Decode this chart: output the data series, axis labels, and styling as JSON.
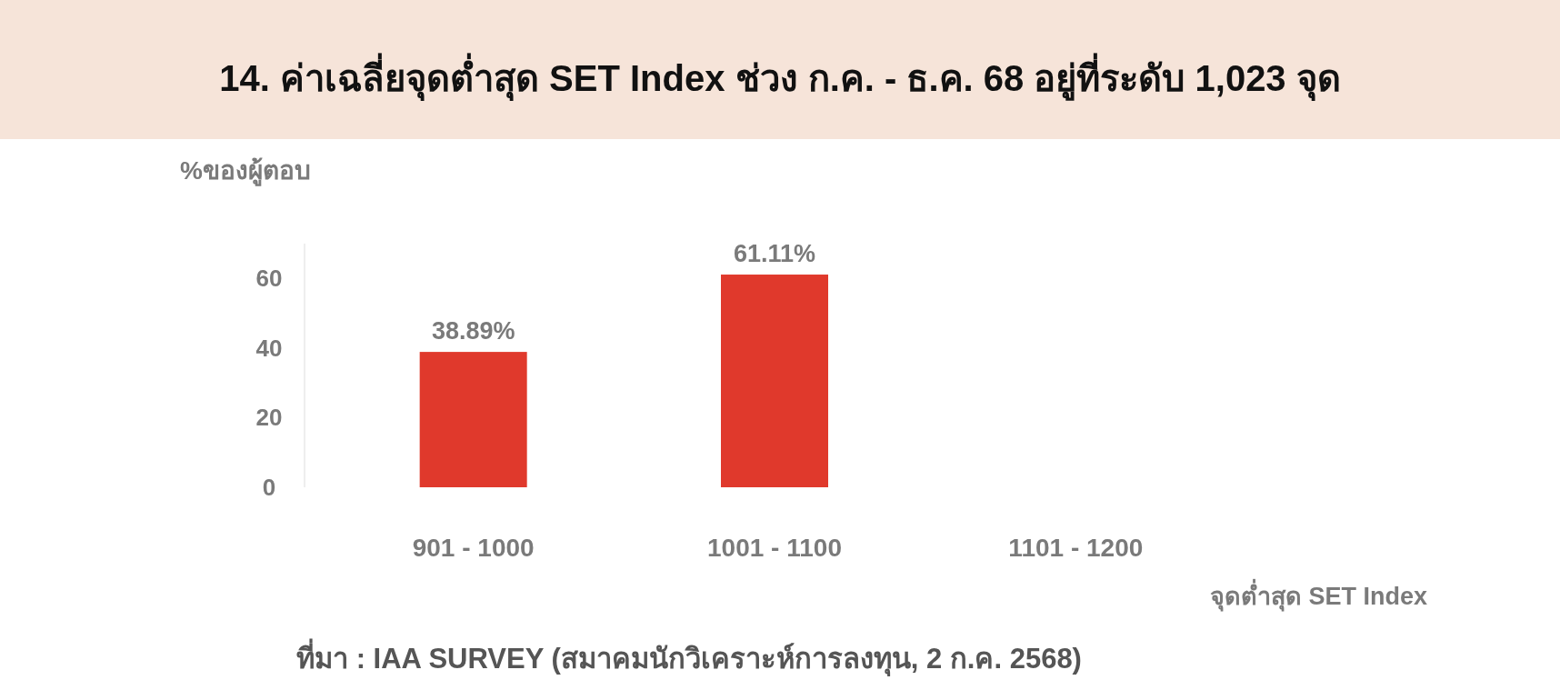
{
  "chart_data": {
    "type": "bar",
    "title": "14. ค่าเฉลี่ยจุดต่ำสุด SET Index ช่วง ก.ค. - ธ.ค. 68 อยู่ที่ระดับ 1,023 จุด",
    "xlabel": "จุดต่ำสุด SET Index",
    "ylabel": "%ของผู้ตอบ",
    "annotations": [
      "ที่มา : IAA SURVEY (สมาคมนักวิเคราะห์การลงทุน, 2 ก.ค. 2568)"
    ],
    "categories": [
      "901 - 1000",
      "1001 - 1100",
      "1101 - 1200"
    ],
    "values": [
      38.89,
      61.11,
      0
    ],
    "value_labels": [
      "38.89%",
      "61.11%",
      null
    ],
    "color": "#e0392c",
    "ylim": [
      0,
      70
    ],
    "yticks": [
      0,
      20,
      40,
      60
    ],
    "grid": false
  }
}
